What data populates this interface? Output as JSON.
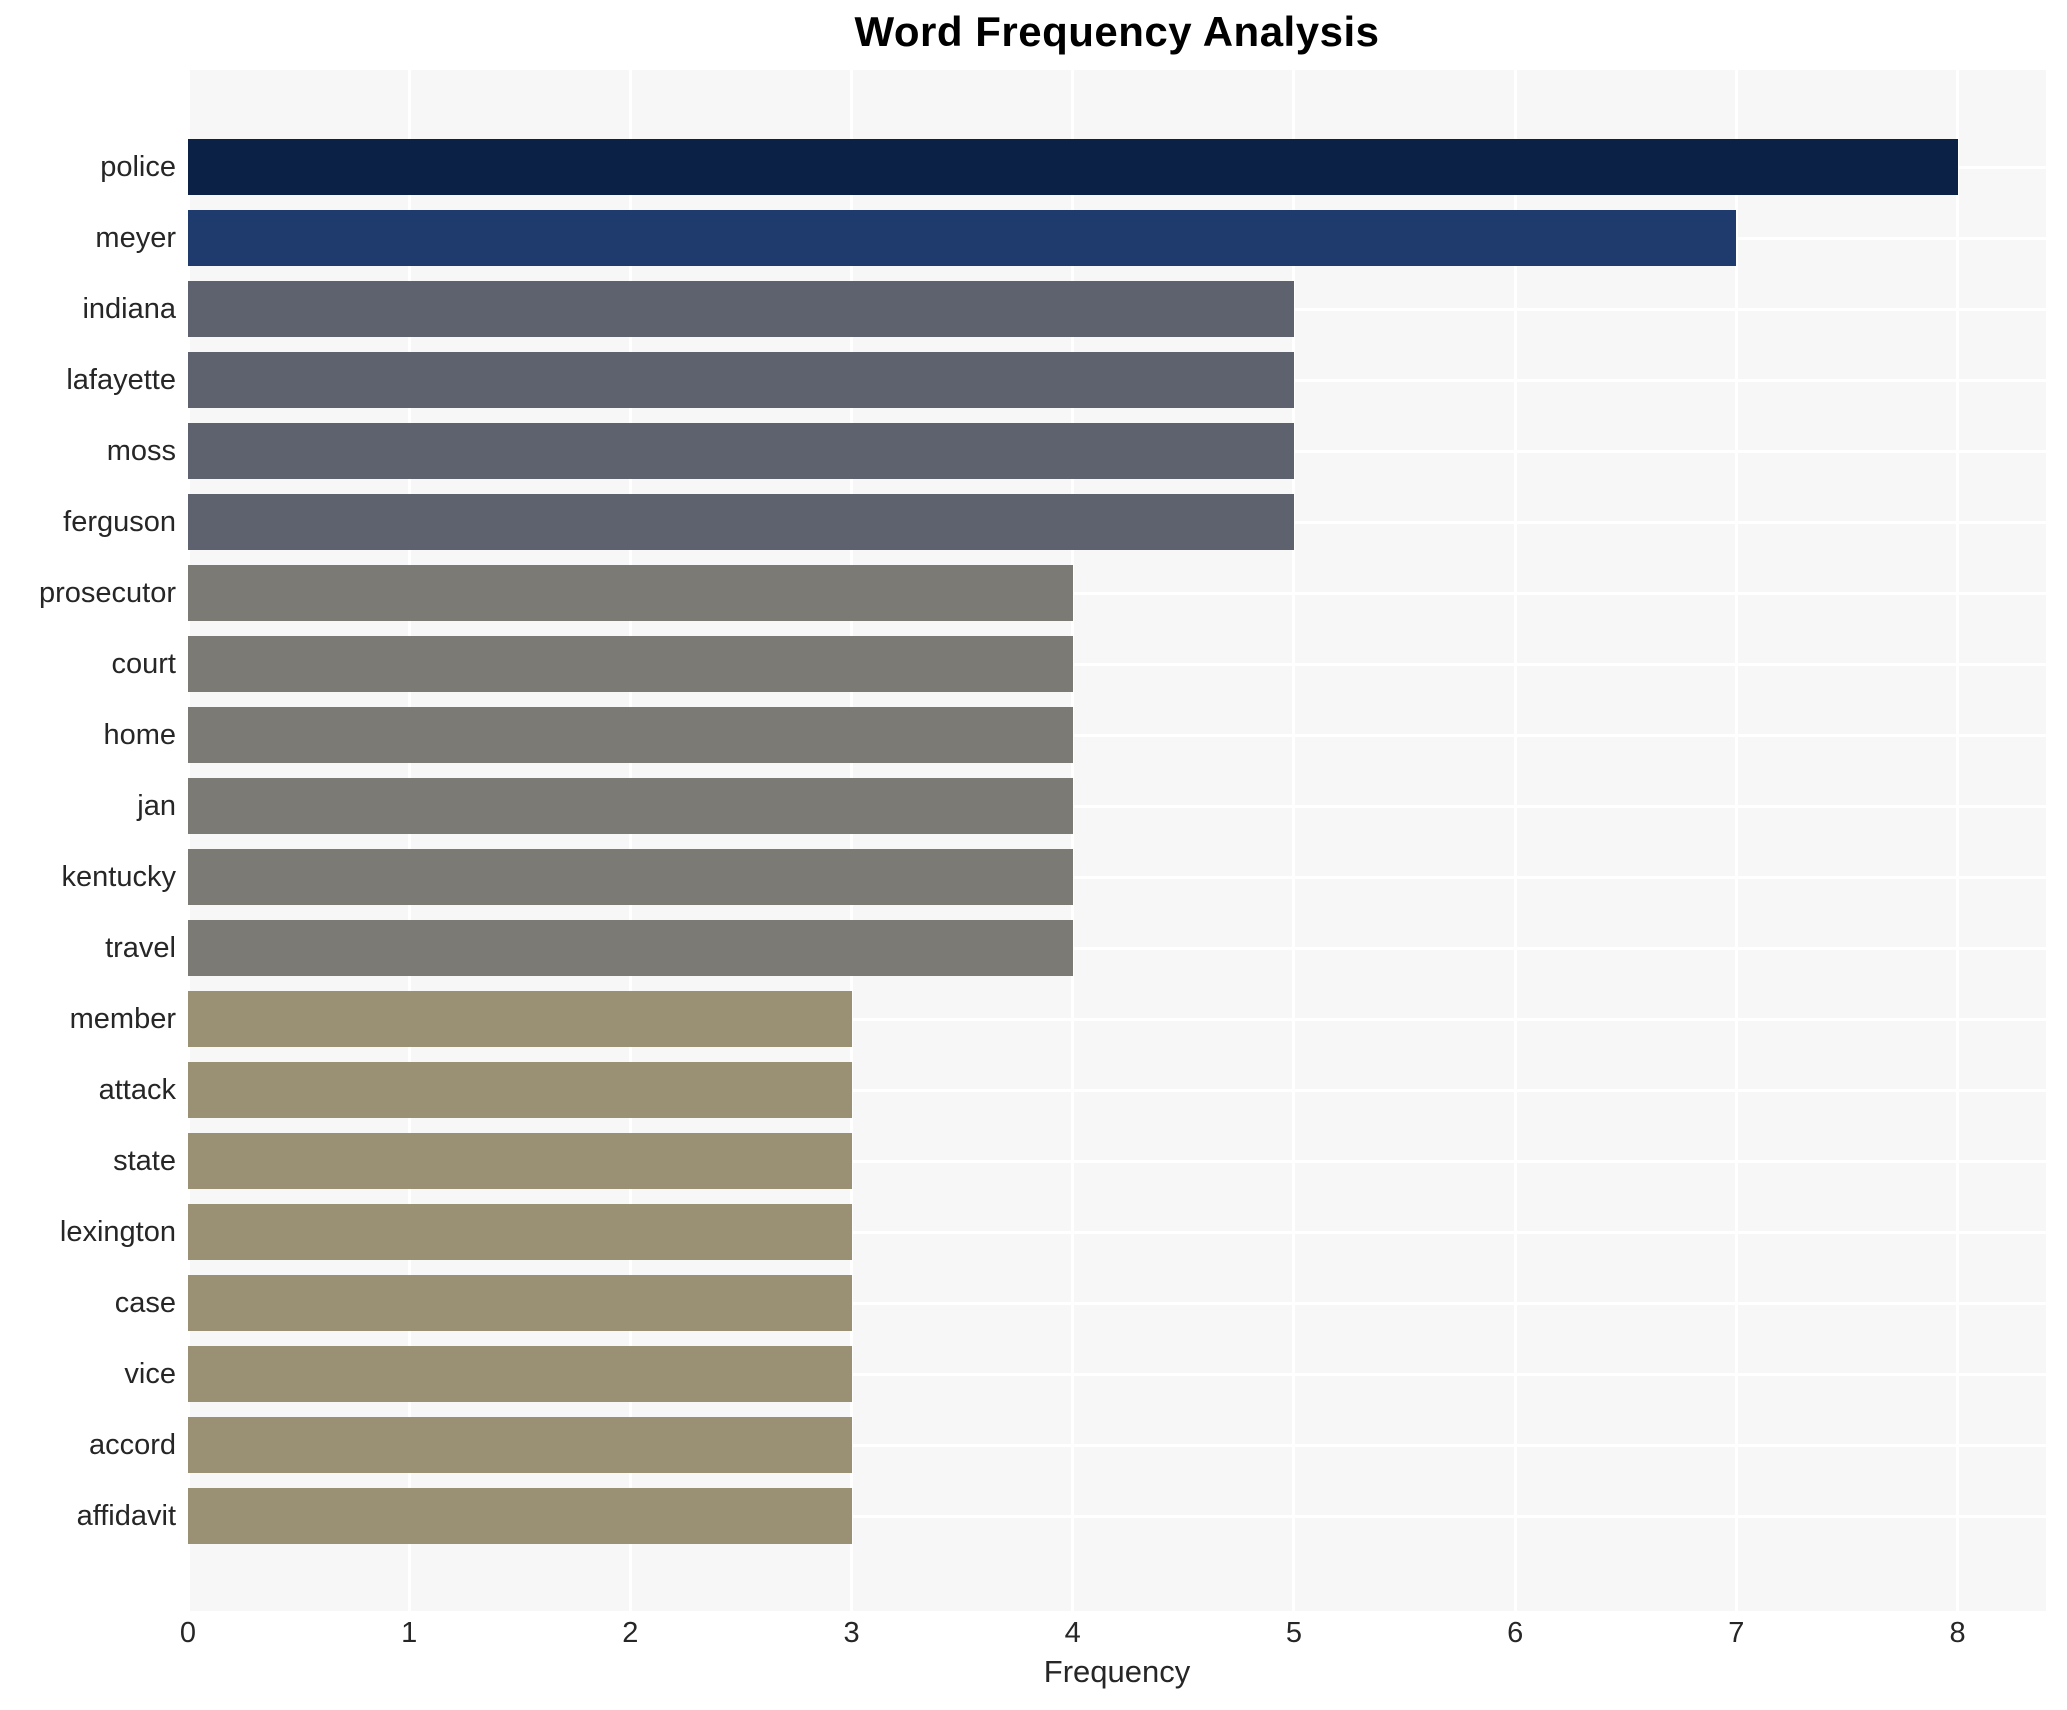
{
  "chart_data": {
    "type": "bar",
    "orientation": "horizontal",
    "title": "Word Frequency Analysis",
    "xlabel": "Frequency",
    "ylabel": "",
    "categories": [
      "police",
      "meyer",
      "indiana",
      "lafayette",
      "moss",
      "ferguson",
      "prosecutor",
      "court",
      "home",
      "jan",
      "kentucky",
      "travel",
      "member",
      "attack",
      "state",
      "lexington",
      "case",
      "vice",
      "accord",
      "affidavit"
    ],
    "values": [
      8,
      7,
      5,
      5,
      5,
      5,
      4,
      4,
      4,
      4,
      4,
      4,
      3,
      3,
      3,
      3,
      3,
      3,
      3,
      3
    ],
    "bar_colors": [
      "#0b2146",
      "#1f3a6c",
      "#5d626e",
      "#5d626e",
      "#5d626e",
      "#5d626e",
      "#7b7a74",
      "#7b7a74",
      "#7b7a74",
      "#7b7a74",
      "#7b7a74",
      "#7b7a74",
      "#9a9175",
      "#9a9175",
      "#9a9175",
      "#9a9175",
      "#9a9175",
      "#9a9175",
      "#9a9175",
      "#9a9175"
    ],
    "x_ticks": [
      0,
      1,
      2,
      3,
      4,
      5,
      6,
      7,
      8
    ],
    "xlim": [
      0,
      8.4
    ],
    "grid": true,
    "legend_position": "none",
    "plot_background": "#f7f7f7",
    "gridline_color": "#ffffff",
    "text_color": "#262626",
    "title_color": "#000000"
  }
}
